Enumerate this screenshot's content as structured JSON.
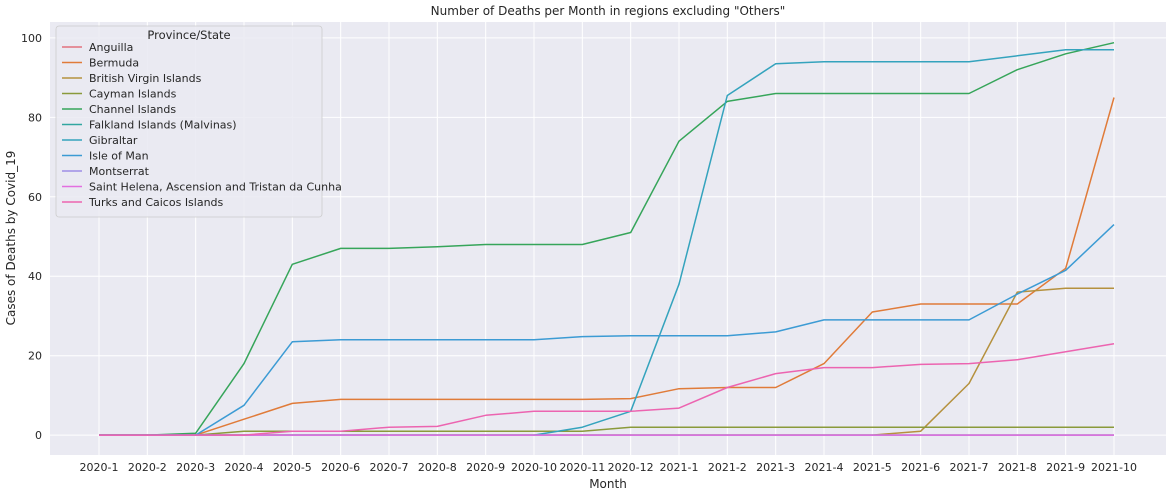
{
  "chart_data": {
    "type": "line",
    "title": "Number of Deaths per Month in regions excluding \"Others\"",
    "xlabel": "Month",
    "ylabel": "Cases of Deaths by Covid_19",
    "ylim": [
      -5,
      104
    ],
    "yticks": [
      0,
      20,
      40,
      60,
      80,
      100
    ],
    "grid": true,
    "legend_title": "Province/State",
    "legend_position": "upper-left",
    "categories": [
      "2020-1",
      "2020-2",
      "2020-3",
      "2020-4",
      "2020-5",
      "2020-6",
      "2020-7",
      "2020-8",
      "2020-9",
      "2020-10",
      "2020-11",
      "2020-12",
      "2021-1",
      "2021-2",
      "2021-3",
      "2021-4",
      "2021-5",
      "2021-6",
      "2021-7",
      "2021-8",
      "2021-9",
      "2021-10"
    ],
    "series": [
      {
        "name": "Anguilla",
        "color": "#e1737e",
        "values": [
          0,
          0,
          0,
          0,
          0,
          0,
          0,
          0,
          0,
          0,
          0,
          0,
          0,
          0,
          0,
          0,
          0,
          0,
          0,
          0,
          0,
          0
        ]
      },
      {
        "name": "Bermuda",
        "color": "#e07b39",
        "values": [
          0,
          0,
          0,
          4,
          8,
          9,
          9,
          9,
          9,
          9,
          9,
          9.2,
          11.7,
          12,
          12,
          18,
          31,
          33,
          33,
          33,
          42,
          85
        ]
      },
      {
        "name": "British Virgin Islands",
        "color": "#b5913e",
        "values": [
          0,
          0,
          0,
          0,
          0,
          0,
          0,
          0,
          0,
          0,
          0,
          0,
          0,
          0,
          0,
          0,
          0,
          1,
          13,
          36,
          37,
          37
        ]
      },
      {
        "name": "Cayman Islands",
        "color": "#8a9a3b",
        "values": [
          0,
          0,
          0,
          1,
          1,
          1,
          1,
          1,
          1,
          1,
          1,
          2,
          2,
          2,
          2,
          2,
          2,
          2,
          2,
          2,
          2,
          2
        ]
      },
      {
        "name": "Channel Islands",
        "color": "#36a55a",
        "values": [
          0,
          0,
          0.5,
          18,
          43,
          47,
          47,
          47.4,
          48,
          48,
          48,
          51,
          74,
          84,
          86,
          86,
          86,
          86,
          86,
          92,
          96,
          98.8
        ]
      },
      {
        "name": "Falkland Islands (Malvinas)",
        "color": "#31a6a0",
        "values": [
          0,
          0,
          0,
          0,
          0,
          0,
          0,
          0,
          0,
          0,
          0,
          0,
          0,
          0,
          0,
          0,
          0,
          0,
          0,
          0,
          0,
          0
        ]
      },
      {
        "name": "Gibraltar",
        "color": "#34a3bd",
        "values": [
          0,
          0,
          0,
          0,
          0,
          0,
          0,
          0,
          0,
          0,
          2,
          6,
          38,
          85.5,
          93.5,
          94,
          94,
          94,
          94,
          95.5,
          97,
          97
        ]
      },
      {
        "name": "Isle of Man",
        "color": "#3c9bd4",
        "values": [
          0,
          0,
          0,
          7.5,
          23.5,
          24,
          24,
          24,
          24,
          24,
          24.8,
          25,
          25,
          25,
          26,
          29,
          29,
          29,
          29,
          35.5,
          41.5,
          53
        ]
      },
      {
        "name": "Montserrat",
        "color": "#9e8ee6",
        "values": [
          0,
          0,
          0,
          0,
          0,
          0,
          0,
          0,
          0,
          0,
          0,
          0,
          0,
          0,
          0,
          0,
          0,
          0,
          0,
          0,
          0,
          0
        ]
      },
      {
        "name": "Saint Helena, Ascension and Tristan da Cunha",
        "color": "#e36fe0",
        "values": [
          0,
          0,
          0,
          0,
          0,
          0,
          0,
          0,
          0,
          0,
          0,
          0,
          0,
          0,
          0,
          0,
          0,
          0,
          0,
          0,
          0,
          0
        ]
      },
      {
        "name": "Turks and Caicos Islands",
        "color": "#ec64b0",
        "values": [
          0,
          0,
          0,
          0,
          1,
          1,
          2,
          2.2,
          5,
          6,
          6,
          6,
          6.8,
          12,
          15.5,
          17,
          17,
          17.8,
          18,
          19,
          21,
          23
        ]
      }
    ]
  }
}
